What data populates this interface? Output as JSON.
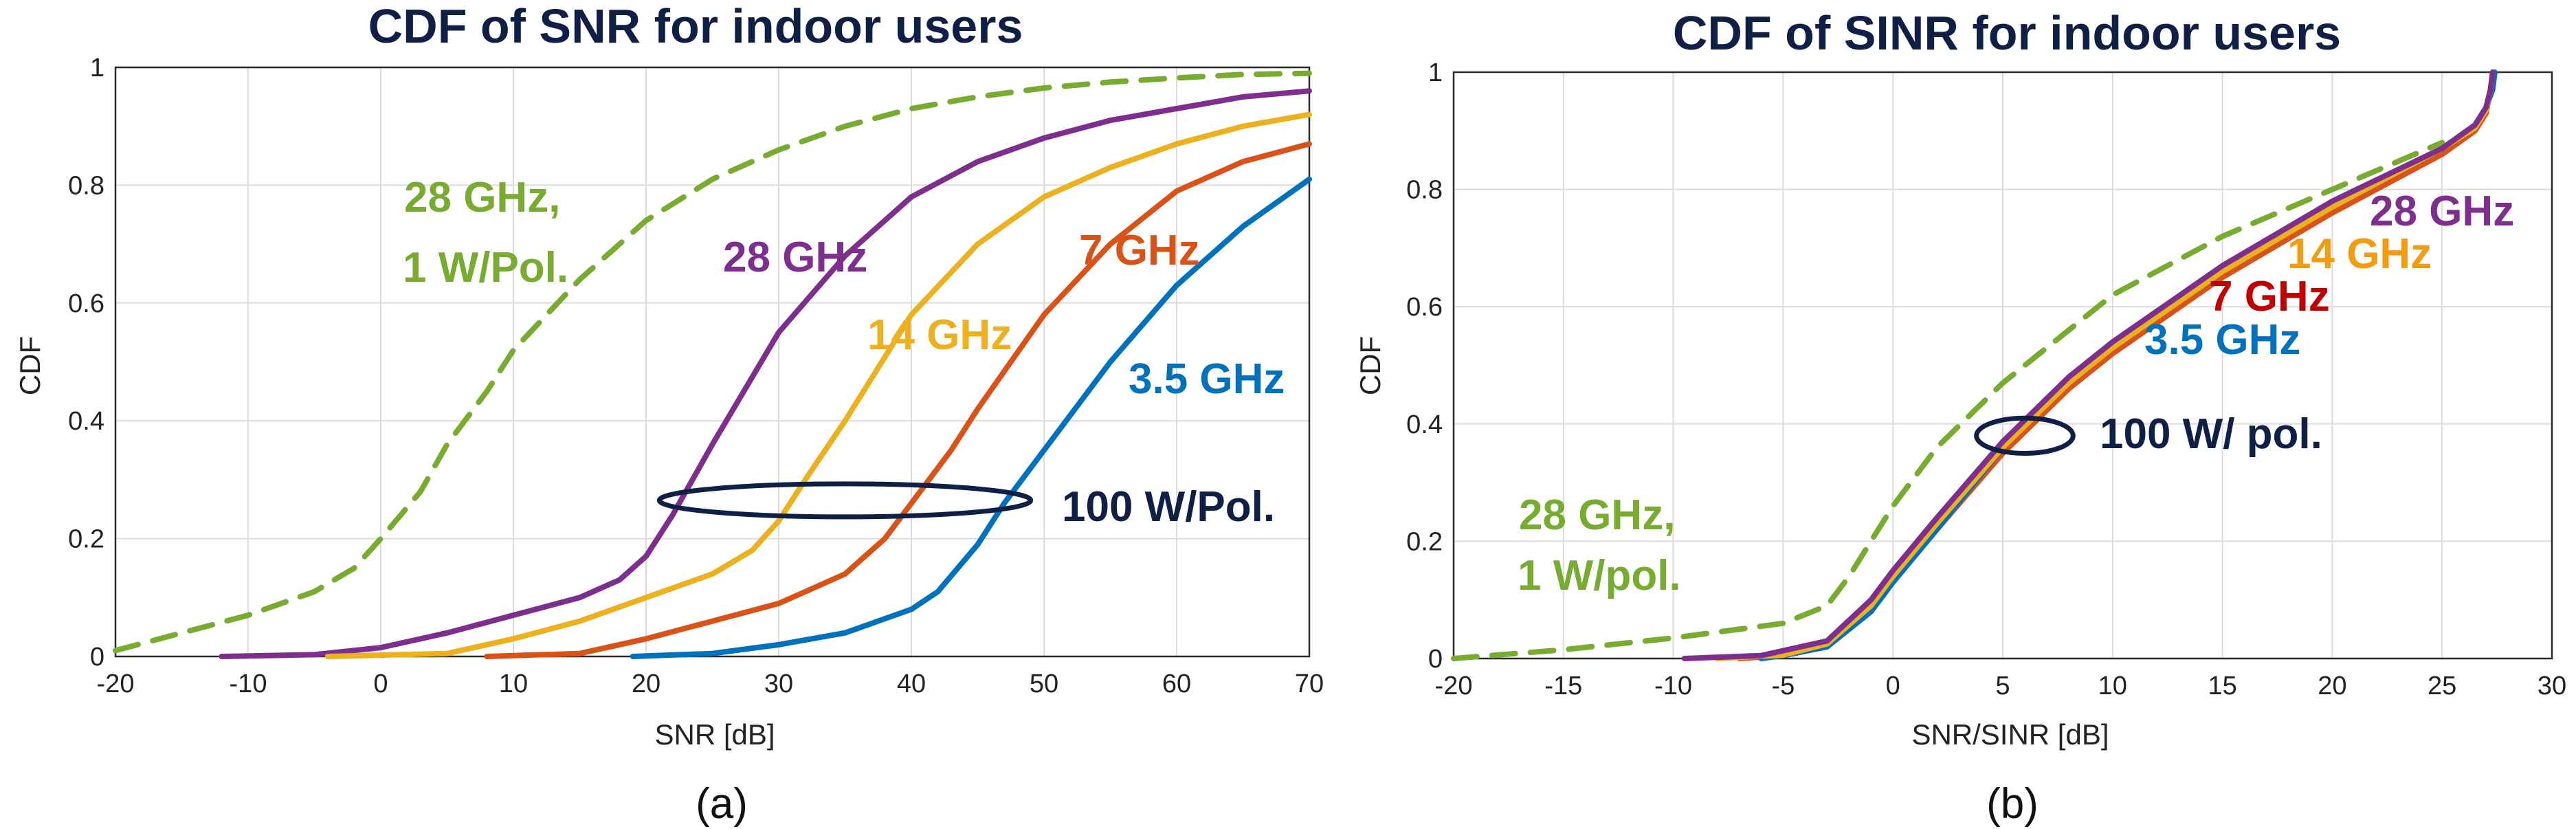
{
  "chart_data": [
    {
      "panel": "a",
      "type": "line",
      "title": "CDF of SNR for indoor users",
      "xlabel": "SNR [dB]",
      "ylabel": "CDF",
      "xlim": [
        -20,
        70
      ],
      "ylim": [
        0,
        1
      ],
      "xticks": [
        -20,
        -10,
        0,
        10,
        20,
        30,
        40,
        50,
        60,
        70
      ],
      "yticks": [
        0,
        0.2,
        0.4,
        0.6,
        0.8,
        1
      ],
      "xtick_labels": [
        "-20",
        "-10",
        "0",
        "10",
        "20",
        "30",
        "40",
        "50",
        "60",
        "70"
      ],
      "ytick_labels": [
        "0",
        "0.2",
        "0.4",
        "0.6",
        "0.8",
        "1"
      ],
      "grid": true,
      "caption": "(a)",
      "series": [
        {
          "name": "28 GHz, 1 W/Pol.",
          "color": "#77ac30",
          "dashed": true,
          "x": [
            -20,
            -15,
            -10,
            -5,
            -2,
            0,
            3,
            5,
            8,
            10,
            15,
            20,
            25,
            30,
            35,
            40,
            45,
            50,
            55,
            60,
            65,
            70
          ],
          "y": [
            0.01,
            0.04,
            0.07,
            0.11,
            0.15,
            0.2,
            0.28,
            0.36,
            0.45,
            0.52,
            0.64,
            0.74,
            0.81,
            0.86,
            0.9,
            0.93,
            0.95,
            0.965,
            0.975,
            0.982,
            0.988,
            0.99
          ]
        },
        {
          "name": "28 GHz",
          "color": "#7e2f8e",
          "dashed": false,
          "x": [
            -12,
            -5,
            0,
            5,
            10,
            15,
            18,
            20,
            22,
            25,
            30,
            35,
            40,
            45,
            50,
            55,
            60,
            65,
            70
          ],
          "y": [
            0,
            0.003,
            0.015,
            0.04,
            0.07,
            0.1,
            0.13,
            0.17,
            0.24,
            0.36,
            0.55,
            0.68,
            0.78,
            0.84,
            0.88,
            0.91,
            0.93,
            0.95,
            0.96
          ]
        },
        {
          "name": "14 GHz",
          "color": "#edb120",
          "dashed": false,
          "x": [
            -4,
            5,
            10,
            15,
            20,
            25,
            28,
            30,
            32,
            35,
            40,
            45,
            50,
            55,
            60,
            65,
            70
          ],
          "y": [
            0,
            0.005,
            0.03,
            0.06,
            0.1,
            0.14,
            0.18,
            0.23,
            0.3,
            0.4,
            0.58,
            0.7,
            0.78,
            0.83,
            0.87,
            0.9,
            0.92
          ]
        },
        {
          "name": "7 GHz",
          "color": "#d95319",
          "dashed": false,
          "x": [
            8,
            15,
            20,
            25,
            30,
            35,
            38,
            40,
            43,
            45,
            50,
            55,
            60,
            65,
            70
          ],
          "y": [
            0,
            0.005,
            0.03,
            0.06,
            0.09,
            0.14,
            0.2,
            0.26,
            0.35,
            0.42,
            0.58,
            0.7,
            0.79,
            0.84,
            0.87
          ]
        },
        {
          "name": "3.5 GHz",
          "color": "#0072bd",
          "dashed": false,
          "x": [
            19,
            25,
            30,
            35,
            40,
            42,
            45,
            47,
            50,
            55,
            60,
            65,
            70
          ],
          "y": [
            0,
            0.005,
            0.02,
            0.04,
            0.08,
            0.11,
            0.19,
            0.26,
            0.35,
            0.5,
            0.63,
            0.73,
            0.81
          ]
        }
      ],
      "annotations": [
        {
          "text": "28 GHz,",
          "color": "#77ac30"
        },
        {
          "text": "1 W/Pol.",
          "color": "#77ac30"
        },
        {
          "text": "28 GHz",
          "color": "#7e2f8e"
        },
        {
          "text": "14 GHz",
          "color": "#edb120"
        },
        {
          "text": "7 GHz",
          "color": "#d95319"
        },
        {
          "text": "3.5 GHz",
          "color": "#0072bd"
        },
        {
          "text": "100 W/Pol.",
          "color": "#0f1f45"
        }
      ],
      "ellipse": {
        "cx": 35,
        "cy": 0.265,
        "rx": 14,
        "ry": 0.028,
        "color": "#0f1f45"
      }
    },
    {
      "panel": "b",
      "type": "line",
      "title": "CDF of SINR for indoor users",
      "xlabel": "SNR/SINR [dB]",
      "ylabel": "CDF",
      "xlim": [
        -20,
        30
      ],
      "ylim": [
        0,
        1
      ],
      "xticks": [
        -20,
        -15,
        -10,
        -5,
        0,
        5,
        10,
        15,
        20,
        25,
        30
      ],
      "yticks": [
        0,
        0.2,
        0.4,
        0.6,
        0.8,
        1
      ],
      "xtick_labels": [
        "-20",
        "-15",
        "-10",
        "-5",
        "0",
        "5",
        "10",
        "15",
        "20",
        "25",
        "30"
      ],
      "ytick_labels": [
        "0",
        "0.2",
        "0.4",
        "0.6",
        "0.8",
        "1"
      ],
      "grid": true,
      "caption": "(b)",
      "series": [
        {
          "name": "28 GHz, 1 W/pol.",
          "color": "#77ac30",
          "dashed": true,
          "x": [
            -20,
            -15,
            -10,
            -5,
            -3,
            -2,
            -1,
            0,
            2,
            5,
            10,
            15,
            20,
            25
          ],
          "y": [
            0,
            0.015,
            0.035,
            0.06,
            0.09,
            0.14,
            0.2,
            0.26,
            0.36,
            0.47,
            0.62,
            0.72,
            0.8,
            0.88
          ]
        },
        {
          "name": "7 GHz",
          "color": "#d95319",
          "dashed": false,
          "x": [
            -7,
            -5,
            -3,
            -1,
            0,
            2,
            5,
            8,
            10,
            15,
            20,
            25,
            26.5,
            27,
            27.2,
            27.3
          ],
          "y": [
            0,
            0.005,
            0.02,
            0.08,
            0.13,
            0.22,
            0.35,
            0.46,
            0.52,
            0.65,
            0.76,
            0.86,
            0.9,
            0.93,
            0.97,
            1.0
          ]
        },
        {
          "name": "3.5 GHz",
          "color": "#0072bd",
          "dashed": false,
          "x": [
            -6,
            -5,
            -3,
            -1,
            0,
            2,
            5,
            8,
            10,
            15,
            20,
            25,
            26.5,
            27,
            27.3,
            27.4
          ],
          "y": [
            0,
            0.005,
            0.02,
            0.08,
            0.13,
            0.22,
            0.36,
            0.47,
            0.53,
            0.66,
            0.77,
            0.87,
            0.91,
            0.94,
            0.97,
            1.0
          ]
        },
        {
          "name": "14 GHz",
          "color": "#edb120",
          "dashed": false,
          "x": [
            -8,
            -5,
            -3,
            -1,
            0,
            2,
            5,
            8,
            10,
            15,
            20,
            25,
            26.5,
            27,
            27.2,
            27.3
          ],
          "y": [
            0,
            0.006,
            0.025,
            0.09,
            0.14,
            0.23,
            0.36,
            0.47,
            0.53,
            0.66,
            0.77,
            0.87,
            0.905,
            0.935,
            0.97,
            1.0
          ]
        },
        {
          "name": "28 GHz",
          "color": "#7e2f8e",
          "dashed": false,
          "x": [
            -9.5,
            -6,
            -3,
            -1,
            0,
            2,
            5,
            8,
            10,
            15,
            20,
            25,
            26.5,
            27,
            27.2,
            27.3
          ],
          "y": [
            0,
            0.005,
            0.03,
            0.1,
            0.15,
            0.24,
            0.37,
            0.48,
            0.54,
            0.67,
            0.78,
            0.87,
            0.91,
            0.94,
            0.97,
            1.0
          ]
        }
      ],
      "annotations": [
        {
          "text": "28 GHz,",
          "color": "#77ac30"
        },
        {
          "text": "1 W/pol.",
          "color": "#77ac30"
        },
        {
          "text": "28 GHz",
          "color": "#7e2f8e"
        },
        {
          "text": "14 GHz",
          "color": "#f39c12"
        },
        {
          "text": "7 GHz",
          "color": "#c00000"
        },
        {
          "text": "3.5 GHz",
          "color": "#0072bd"
        },
        {
          "text": "100 W/ pol.",
          "color": "#0f1f45"
        }
      ],
      "ellipse": {
        "cx": 6.0,
        "cy": 0.38,
        "rx": 2.2,
        "ry": 0.03,
        "color": "#0f1f45"
      }
    }
  ]
}
